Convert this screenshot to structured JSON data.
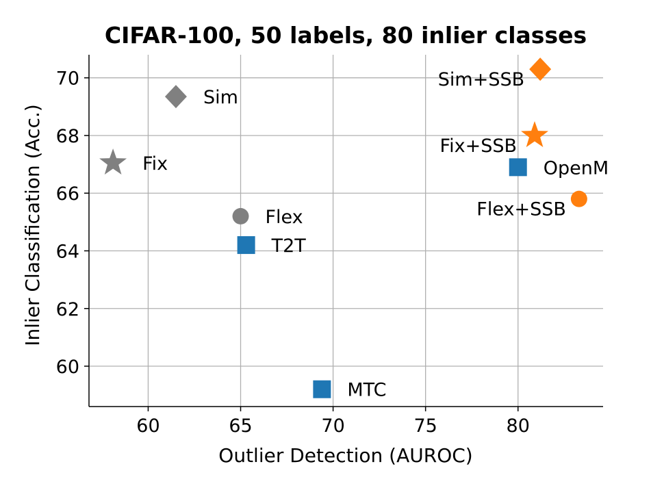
{
  "chart_data": {
    "type": "scatter",
    "title": "CIFAR-100, 50 labels, 80 inlier classes",
    "xlabel": "Outlier Detection (AUROC)",
    "ylabel": "Inlier Classification (Acc.)",
    "xlim": [
      56.8,
      84.6
    ],
    "ylim": [
      58.6,
      70.8
    ],
    "xticks": [
      60,
      65,
      70,
      75,
      80
    ],
    "yticks": [
      60,
      62,
      64,
      66,
      68,
      70
    ],
    "grid": true,
    "colors": {
      "gray": "#808080",
      "blue": "#1f77b4",
      "orange": "#ff7f0e"
    },
    "points": [
      {
        "label": "Sim",
        "x": 61.5,
        "y": 69.35,
        "marker": "diamond",
        "color": "#808080",
        "label_side": "right"
      },
      {
        "label": "Fix",
        "x": 58.1,
        "y": 67.05,
        "marker": "star",
        "color": "#808080",
        "label_side": "right"
      },
      {
        "label": "Flex",
        "x": 65.0,
        "y": 65.2,
        "marker": "circle",
        "color": "#808080",
        "label_side": "right"
      },
      {
        "label": "T2T",
        "x": 65.3,
        "y": 64.2,
        "marker": "square",
        "color": "#1f77b4",
        "label_side": "right"
      },
      {
        "label": "MTC",
        "x": 69.4,
        "y": 59.2,
        "marker": "square",
        "color": "#1f77b4",
        "label_side": "right"
      },
      {
        "label": "OpenM",
        "x": 80.0,
        "y": 66.9,
        "marker": "square",
        "color": "#1f77b4",
        "label_side": "right"
      },
      {
        "label": "Sim+SSB",
        "x": 81.2,
        "y": 70.3,
        "marker": "diamond",
        "color": "#ff7f0e",
        "label_side": "left"
      },
      {
        "label": "Fix+SSB",
        "x": 80.9,
        "y": 68.0,
        "marker": "star",
        "color": "#ff7f0e",
        "label_side": "left"
      },
      {
        "label": "Flex+SSB",
        "x": 83.3,
        "y": 65.8,
        "marker": "circle",
        "color": "#ff7f0e",
        "label_side": "left"
      }
    ]
  }
}
